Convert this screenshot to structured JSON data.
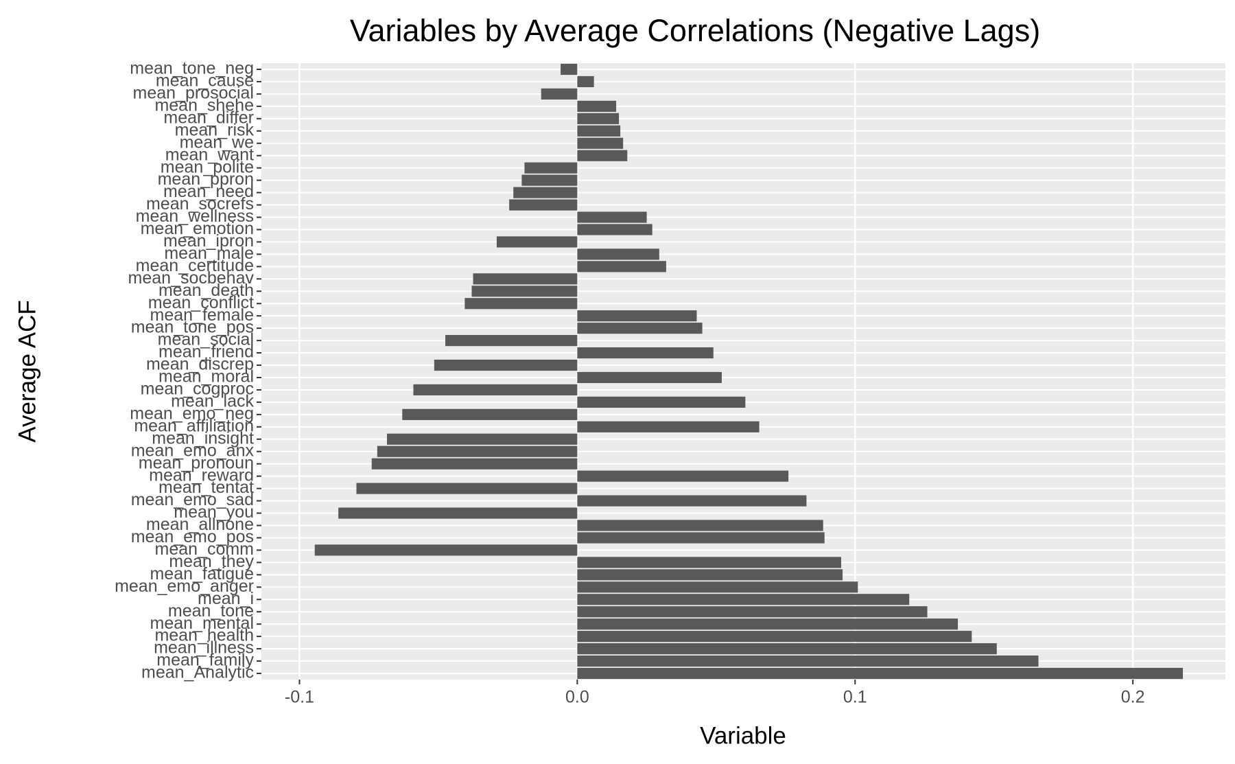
{
  "chart_data": {
    "type": "barh",
    "title": "Variables by Average Correlations (Negative Lags)",
    "x_label": "Variable",
    "y_label": "Average ACF",
    "categories": [
      "mean_tone_neg",
      "mean_cause",
      "mean_prosocial",
      "mean_shehe",
      "mean_differ",
      "mean_risk",
      "mean_we",
      "mean_want",
      "mean_polite",
      "mean_ppron",
      "mean_need",
      "mean_socrefs",
      "mean_wellness",
      "mean_emotion",
      "mean_ipron",
      "mean_male",
      "mean_certitude",
      "mean_socbehav",
      "mean_death",
      "mean_conflict",
      "mean_female",
      "mean_tone_pos",
      "mean_social",
      "mean_friend",
      "mean_discrep",
      "mean_moral",
      "mean_cogproc",
      "mean_lack",
      "mean_emo_neg",
      "mean_affiliation",
      "mean_insight",
      "mean_emo_anx",
      "mean_pronoun",
      "mean_reward",
      "mean_tentat",
      "mean_emo_sad",
      "mean_you",
      "mean_allnone",
      "mean_emo_pos",
      "mean_comm",
      "mean_they",
      "mean_fatigue",
      "mean_emo_anger",
      "mean_i",
      "mean_tone",
      "mean_mental",
      "mean_health",
      "mean_illness",
      "mean_family",
      "mean_Analytic"
    ],
    "values": [
      -0.006,
      0.006,
      -0.013,
      0.014,
      0.015,
      0.0155,
      0.0165,
      0.018,
      -0.019,
      -0.02,
      -0.023,
      -0.0245,
      0.025,
      0.027,
      -0.029,
      0.0295,
      0.032,
      -0.0375,
      -0.038,
      -0.0405,
      0.043,
      0.045,
      -0.0475,
      0.049,
      -0.0515,
      0.052,
      -0.059,
      0.0605,
      -0.063,
      0.0655,
      -0.0685,
      -0.072,
      -0.074,
      0.076,
      -0.0795,
      0.0825,
      -0.086,
      0.0885,
      0.089,
      -0.0945,
      0.095,
      0.0955,
      0.101,
      0.1195,
      0.126,
      0.137,
      0.142,
      0.151,
      0.166,
      0.218
    ],
    "color": "#595959",
    "xlim": [
      -0.1137,
      0.2333
    ],
    "xticks": [
      -0.1,
      {
        "value": 0,
        "label": "0.0"
      },
      0.1,
      0.2
    ],
    "grid": true
  }
}
